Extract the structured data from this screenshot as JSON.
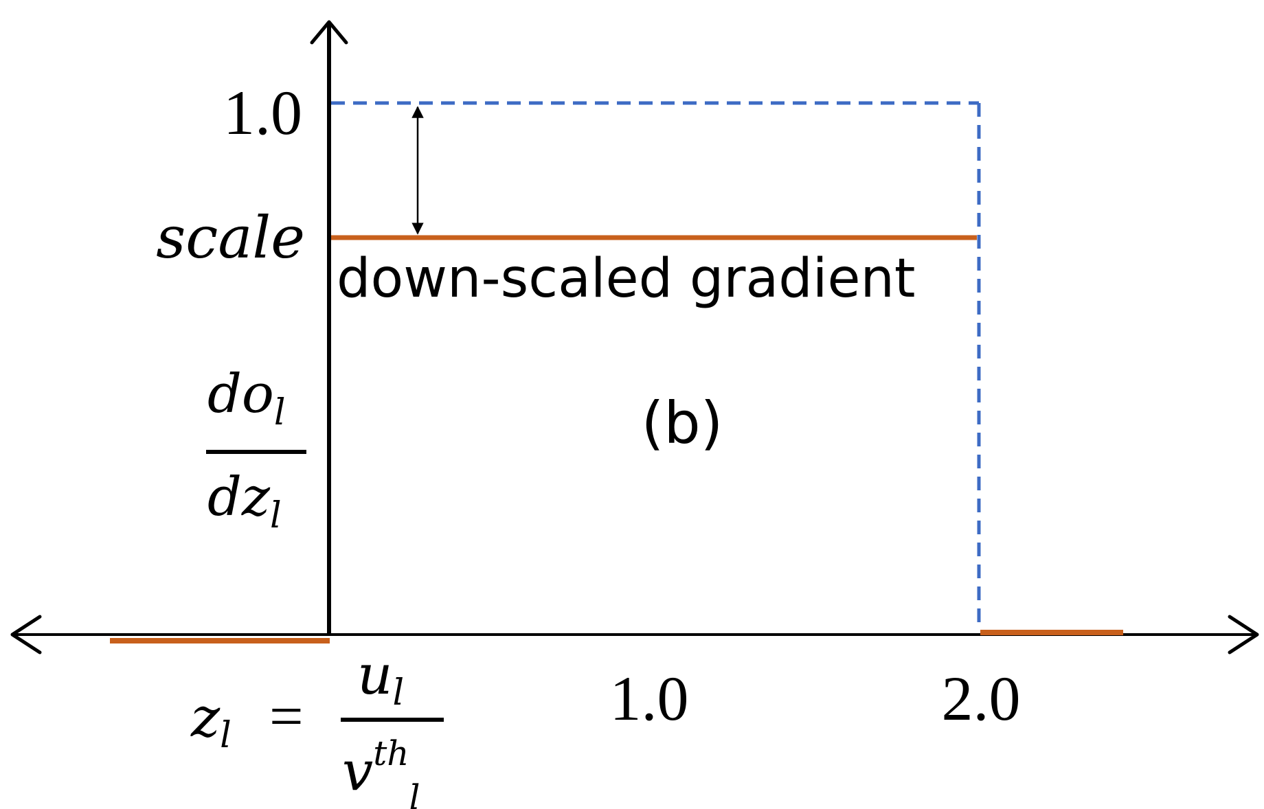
{
  "labels": {
    "y_tick_top": "1.0",
    "y_tick_scale": "scale",
    "annotation": "down-scaled gradient",
    "panel_label": "(b)",
    "x_tick_1": "1.0",
    "x_tick_2": "2.0",
    "y_axis_label": {
      "numerator_base": "do",
      "numerator_sub": "l",
      "denominator_base": "dz",
      "denominator_sub": "l"
    },
    "x_axis_label": {
      "lhs_base": "z",
      "lhs_sub": "l",
      "equals": "=",
      "numerator_base": "u",
      "numerator_sub": "l",
      "denominator_base": "v",
      "denominator_sup": "th",
      "denominator_sub": "l"
    }
  },
  "colors": {
    "axis": "#000000",
    "original_gradient": "#3d6bc4",
    "scaled_gradient": "#c8601c",
    "text": "#000000"
  }
}
